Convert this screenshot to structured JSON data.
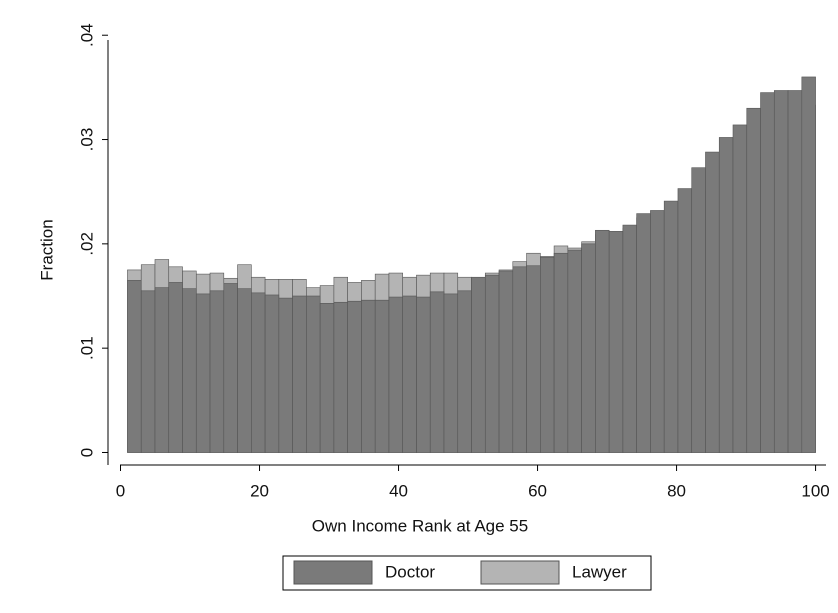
{
  "chart_data": {
    "type": "histogram",
    "x_label": "Own Income Rank at Age 55",
    "y_label": "Fraction",
    "bins": [
      1,
      2.98,
      4.96,
      6.94,
      8.92,
      10.9,
      12.88,
      14.86,
      16.84,
      18.82,
      20.8,
      22.78,
      24.76,
      26.74,
      28.72,
      30.7,
      32.68,
      34.66,
      36.64,
      38.62,
      40.6,
      42.58,
      44.56,
      46.54,
      48.52,
      50.5,
      52.48,
      54.46,
      56.44,
      58.42,
      60.4,
      62.38,
      64.36,
      66.34,
      68.32,
      70.3,
      72.28,
      74.26,
      76.24,
      78.22,
      80.2,
      82.18,
      84.16,
      86.14,
      88.12,
      90.1,
      92.08,
      94.06,
      96.04,
      98.02,
      100
    ],
    "series": [
      {
        "name": "Lawyer",
        "color": "#b4b4b4",
        "values": [
          0.0175,
          0.018,
          0.0185,
          0.0178,
          0.0174,
          0.0171,
          0.0172,
          0.0167,
          0.018,
          0.0168,
          0.0166,
          0.0166,
          0.0166,
          0.0158,
          0.016,
          0.0168,
          0.0163,
          0.0165,
          0.0171,
          0.0172,
          0.0168,
          0.017,
          0.0172,
          0.0172,
          0.0168,
          0.0167,
          0.0172,
          0.0175,
          0.0183,
          0.0191,
          0.0188,
          0.0198,
          0.0196,
          0.0202,
          0.0209,
          0.0205,
          0.0215,
          0.0225,
          0.0215,
          0.023,
          0.024,
          0.0245,
          0.025,
          0.0255,
          0.0265,
          0.0273,
          0.0283,
          0.03,
          0.0298,
          0.0333
        ]
      },
      {
        "name": "Doctor",
        "color": "#7a7a7a",
        "values": [
          0.0165,
          0.0155,
          0.0158,
          0.0163,
          0.0157,
          0.0152,
          0.0155,
          0.0162,
          0.0157,
          0.0153,
          0.0151,
          0.0148,
          0.015,
          0.015,
          0.0143,
          0.0144,
          0.0145,
          0.0146,
          0.0146,
          0.0149,
          0.015,
          0.0149,
          0.0154,
          0.0152,
          0.0155,
          0.0168,
          0.017,
          0.0174,
          0.0178,
          0.0179,
          0.0187,
          0.0191,
          0.0194,
          0.02,
          0.0213,
          0.0212,
          0.0218,
          0.0229,
          0.0232,
          0.0241,
          0.0253,
          0.0273,
          0.0288,
          0.0302,
          0.0314,
          0.033,
          0.0345,
          0.0347,
          0.0347,
          0.036
        ]
      }
    ],
    "legend_order": [
      1,
      0
    ],
    "xlim": [
      -1.8,
      101.5
    ],
    "xticks": [
      0,
      20,
      40,
      60,
      80,
      100
    ],
    "ylim": [
      -0.0012,
      0.0405
    ],
    "yticks": [
      {
        "value": 0,
        "label": "0"
      },
      {
        "value": 0.01,
        "label": ".01"
      },
      {
        "value": 0.02,
        "label": ".02"
      },
      {
        "value": 0.03,
        "label": ".03"
      },
      {
        "value": 0.04,
        "label": ".04"
      }
    ]
  }
}
